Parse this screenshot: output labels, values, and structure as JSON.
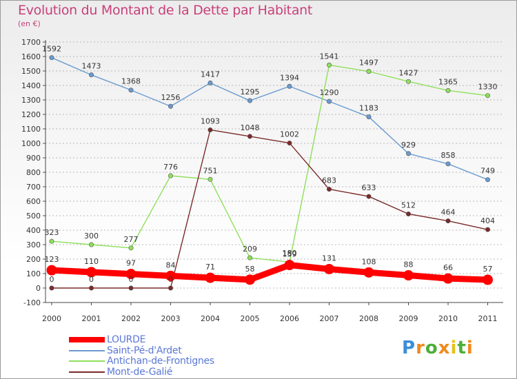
{
  "header": {
    "title": "Evolution du Montant de la Dette par Habitant",
    "subtitle": "(en €)"
  },
  "brand": {
    "text": "Proxiti",
    "letters": [
      "P",
      "r",
      "o",
      "x",
      "i",
      "t",
      "i"
    ]
  },
  "chart_data": {
    "type": "line",
    "title": "Evolution du Montant de la Dette par Habitant",
    "subtitle": "(en €)",
    "xlabel": "",
    "ylabel": "",
    "ylim": [
      -100,
      1700
    ],
    "ytick_step": 100,
    "yticks": [
      "-100",
      "0",
      "100",
      "200",
      "300",
      "400",
      "500",
      "600",
      "700",
      "800",
      "900",
      "1000",
      "1100",
      "1200",
      "1300",
      "1400",
      "1500",
      "1600",
      "1700"
    ],
    "grid": true,
    "legend_position": "bottom-left",
    "categories": [
      "2000",
      "2001",
      "2002",
      "2003",
      "2004",
      "2005",
      "2006",
      "2007",
      "2008",
      "2009",
      "2010",
      "2011"
    ],
    "series": [
      {
        "name": "LOURDE",
        "color": "#ff0000",
        "values": [
          123,
          110,
          97,
          84,
          71,
          58,
          159,
          131,
          108,
          88,
          66,
          57
        ],
        "labels": [
          "123",
          "110",
          "97",
          "84",
          "71",
          "58",
          "159",
          "131",
          "108",
          "88",
          "66",
          "57"
        ]
      },
      {
        "name": "Saint-Pé-d'Ardet",
        "color": "#6a9ad0",
        "values": [
          1592,
          1473,
          1368,
          1256,
          1417,
          1295,
          1394,
          1290,
          1183,
          929,
          858,
          749
        ],
        "labels": [
          "1592",
          "1473",
          "1368",
          "1256",
          "1417",
          "1295",
          "1394",
          "1290",
          "1183",
          "929",
          "858",
          "749"
        ]
      },
      {
        "name": "Antichan-de-Frontignes",
        "color": "#8ee05a",
        "values": [
          323,
          300,
          277,
          776,
          751,
          209,
          180,
          1541,
          1497,
          1427,
          1365,
          1330
        ],
        "labels": [
          "323",
          "300",
          "277",
          "776",
          "751",
          "209",
          "180",
          "1541",
          "1497",
          "1427",
          "1365",
          "1330"
        ]
      },
      {
        "name": "Mont-de-Galié",
        "color": "#7a2a2a",
        "values": [
          0,
          0,
          0,
          0,
          1093,
          1048,
          1002,
          683,
          633,
          512,
          464,
          404
        ],
        "labels": [
          "0",
          "0",
          "0",
          "0",
          "1093",
          "1048",
          "1002",
          "683",
          "633",
          "512",
          "464",
          "404"
        ]
      }
    ]
  }
}
